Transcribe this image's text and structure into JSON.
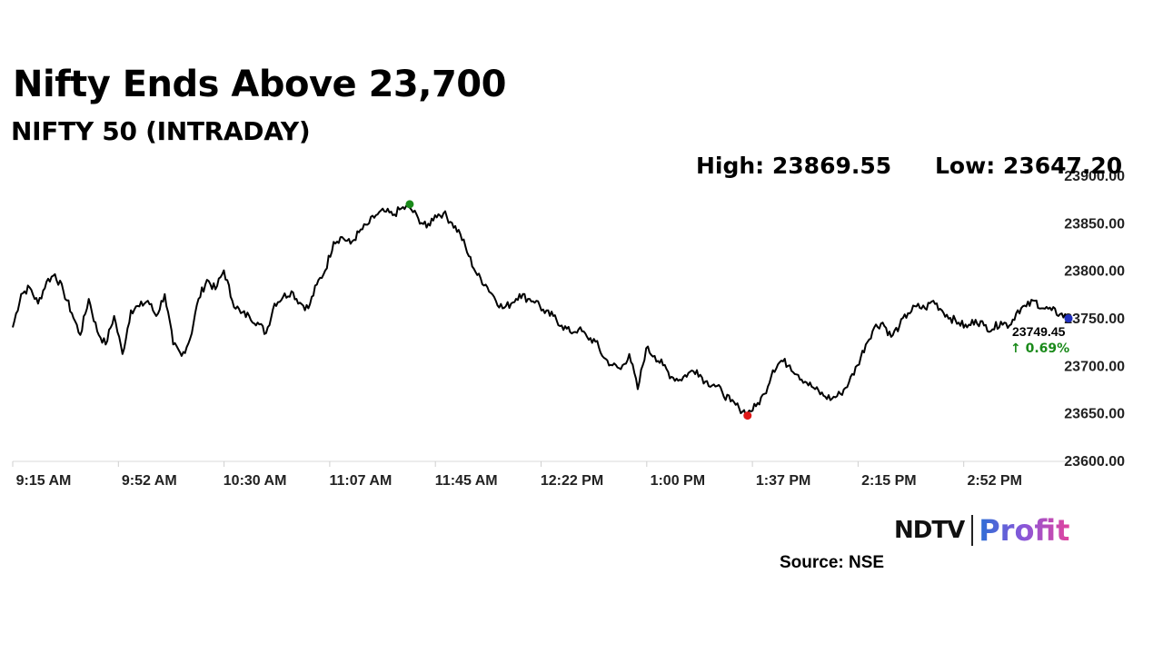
{
  "header": {
    "title": "Nifty Ends Above 23,700",
    "subtitle": "NIFTY 50 (INTRADAY)",
    "high_text": "High: 23869.55",
    "low_text": "Low: 23647.20"
  },
  "chart_data": {
    "type": "line",
    "x_labels": [
      "9:15 AM",
      "9:52 AM",
      "10:30 AM",
      "11:07 AM",
      "11:45 AM",
      "12:22 PM",
      "1:00 PM",
      "1:37 PM",
      "2:15 PM",
      "2:52 PM"
    ],
    "y_ticks": [
      "23600.00",
      "23650.00",
      "23700.00",
      "23750.00",
      "23800.00",
      "23850.00",
      "23900.00"
    ],
    "ylim": [
      23600,
      23900
    ],
    "grid": false,
    "series": [
      {
        "values": [
          23740,
          23775,
          23782,
          23765,
          23788,
          23796,
          23778,
          23755,
          23732,
          23770,
          23736,
          23722,
          23752,
          23712,
          23758,
          23762,
          23768,
          23752,
          23775,
          23722,
          23710,
          23728,
          23770,
          23790,
          23780,
          23800,
          23768,
          23755,
          23752,
          23745,
          23734,
          23765,
          23772,
          23778,
          23766,
          23760,
          23785,
          23800,
          23830,
          23835,
          23828,
          23840,
          23848,
          23858,
          23862,
          23858,
          23865,
          23866,
          23855,
          23845,
          23858,
          23860,
          23850,
          23838,
          23815,
          23795,
          23785,
          23772,
          23760,
          23765,
          23775,
          23770,
          23768,
          23755,
          23752,
          23742,
          23735,
          23738,
          23730,
          23725,
          23708,
          23700,
          23696,
          23712,
          23675,
          23718,
          23710,
          23700,
          23688,
          23685,
          23692,
          23695,
          23683,
          23680,
          23672,
          23662,
          23655,
          23650,
          23657,
          23670,
          23695,
          23705,
          23700,
          23690,
          23682,
          23675,
          23668,
          23665,
          23670,
          23682,
          23700,
          23722,
          23740,
          23745,
          23730,
          23742,
          23755,
          23762,
          23760,
          23768,
          23758,
          23750,
          23745,
          23740,
          23748,
          23742,
          23738,
          23746,
          23742,
          23758,
          23762,
          23768,
          23760,
          23758,
          23754,
          23749.45
        ]
      }
    ],
    "high": 23869.55,
    "low": 23647.2,
    "last": {
      "value_label": "23749.45",
      "change_label": "↑ 0.69%"
    }
  },
  "footer": {
    "brand_ndtv": "NDTV",
    "brand_profit": "Profit",
    "source": "Source: NSE"
  },
  "colors": {
    "line": "#000000",
    "high_marker": "#1a8a1a",
    "low_marker": "#e01818",
    "last_marker": "#2030c0",
    "change_up": "#1a8a1a"
  }
}
